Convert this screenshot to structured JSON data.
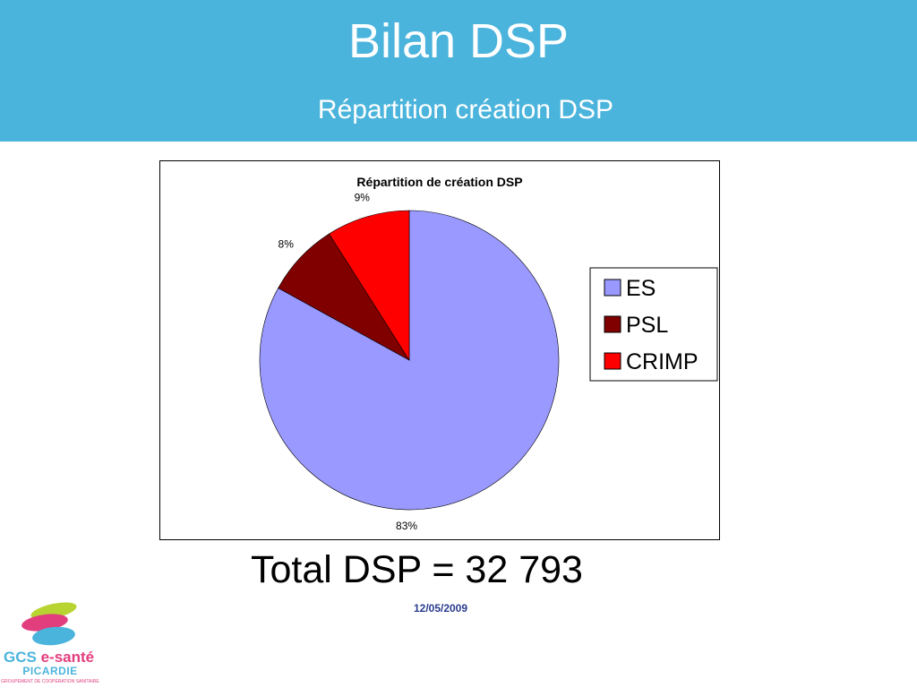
{
  "header": {
    "title": "Bilan DSP",
    "subtitle": "Répartition création DSP",
    "background_color": "#4bb4dc"
  },
  "chart_data": {
    "type": "pie",
    "title": "Répartition de création DSP",
    "categories": [
      "ES",
      "PSL",
      "CRIMP"
    ],
    "values": [
      83,
      8,
      9
    ],
    "data_labels": [
      "83%",
      "8%",
      "9%"
    ],
    "colors": [
      "#9999ff",
      "#800000",
      "#ff0000"
    ],
    "legend_placement": "right",
    "start_angle": "top, clockwise"
  },
  "total": {
    "text": "Total DSP = 32 793"
  },
  "footer": {
    "date": "12/05/2009"
  },
  "logo": {
    "brand_prefix": "GCS",
    "brand_name": "e-santé",
    "region": "PICARDIE",
    "tagline": "GROUPEMENT DE COOPÉRATION SANITAIRE",
    "colors": [
      "#b8d430",
      "#e23d7d",
      "#4bb4dc"
    ]
  }
}
